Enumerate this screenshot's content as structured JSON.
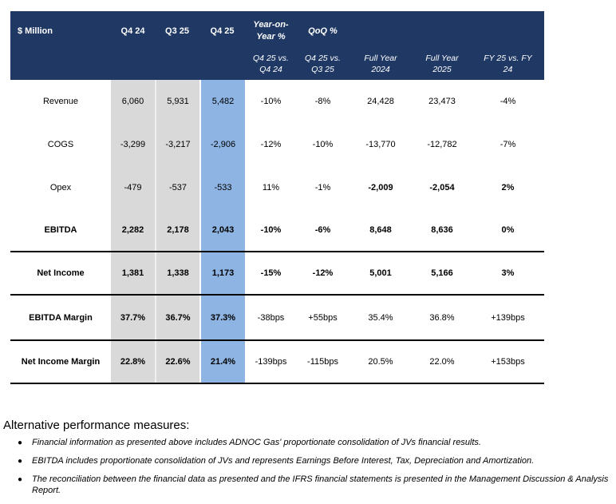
{
  "colors": {
    "header_bg": "#1F3864",
    "header_text": "#FFFFFF",
    "gray_column": "#D9D9D9",
    "blue_column": "#8DB4E2",
    "separator": "#000000",
    "body_text": "#000000"
  },
  "table": {
    "unit_label": "$ Million",
    "quarter_headers": [
      "Q4 24",
      "Q3 25",
      "Q4 25"
    ],
    "group_headers": [
      "Year-on-Year %",
      "QoQ %"
    ],
    "sub_headers": [
      "Q4 25 vs. Q4 24",
      "Q4 25 vs. Q3 25",
      "Full Year 2024",
      "Full Year 2025",
      "FY 25 vs. FY 24"
    ],
    "rows": [
      {
        "label": "Revenue",
        "label_bold": false,
        "separator_below": false,
        "values": [
          "6,060",
          "5,931",
          "5,482",
          "-10%",
          "-8%",
          "24,428",
          "23,473",
          "-4%"
        ],
        "bold": [
          false,
          false,
          false,
          false,
          false,
          false,
          false,
          false
        ]
      },
      {
        "label": "COGS",
        "label_bold": false,
        "separator_below": false,
        "values": [
          "-3,299",
          "-3,217",
          "-2,906",
          "-12%",
          "-10%",
          "-13,770",
          "-12,782",
          "-7%"
        ],
        "bold": [
          false,
          false,
          false,
          false,
          false,
          false,
          false,
          false
        ]
      },
      {
        "label": "Opex",
        "label_bold": false,
        "separator_below": false,
        "values": [
          "-479",
          "-537",
          "-533",
          "11%",
          "-1%",
          "-2,009",
          "-2,054",
          "2%"
        ],
        "bold": [
          false,
          false,
          false,
          false,
          false,
          true,
          true,
          true
        ]
      },
      {
        "label": "EBITDA",
        "label_bold": true,
        "separator_below": true,
        "values": [
          "2,282",
          "2,178",
          "2,043",
          "-10%",
          "-6%",
          "8,648",
          "8,636",
          "0%"
        ],
        "bold": [
          true,
          true,
          true,
          true,
          true,
          true,
          true,
          true
        ]
      },
      {
        "label": "Net Income",
        "label_bold": true,
        "separator_below": true,
        "values": [
          "1,381",
          "1,338",
          "1,173",
          "-15%",
          "-12%",
          "5,001",
          "5,166",
          "3%"
        ],
        "bold": [
          true,
          true,
          true,
          true,
          true,
          true,
          true,
          true
        ]
      },
      {
        "label": "EBITDA Margin",
        "label_bold": true,
        "separator_below": true,
        "values": [
          "37.7%",
          "36.7%",
          "37.3%",
          "-38bps",
          "+55bps",
          "35.4%",
          "36.8%",
          "+139bps"
        ],
        "bold": [
          true,
          true,
          true,
          false,
          false,
          false,
          false,
          false
        ]
      },
      {
        "label": "Net Income Margin",
        "label_bold": true,
        "separator_below": true,
        "values": [
          "22.8%",
          "22.6%",
          "21.4%",
          "-139bps",
          "-115bps",
          "20.5%",
          "22.0%",
          "+153bps"
        ],
        "bold": [
          true,
          true,
          true,
          false,
          false,
          false,
          false,
          false
        ]
      }
    ]
  },
  "footnotes": {
    "title": "Alternative performance measures:",
    "bullet_glyph": "●",
    "bullets": [
      "Financial information as presented above includes ADNOC Gas' proportionate consolidation of JVs financial results.",
      "EBITDA includes proportionate consolidation of JVs and represents Earnings Before Interest, Tax, Depreciation and Amortization.",
      "The reconciliation between the financial data as presented and the IFRS financial statements is presented in the Management Discussion & Analysis Report."
    ]
  }
}
